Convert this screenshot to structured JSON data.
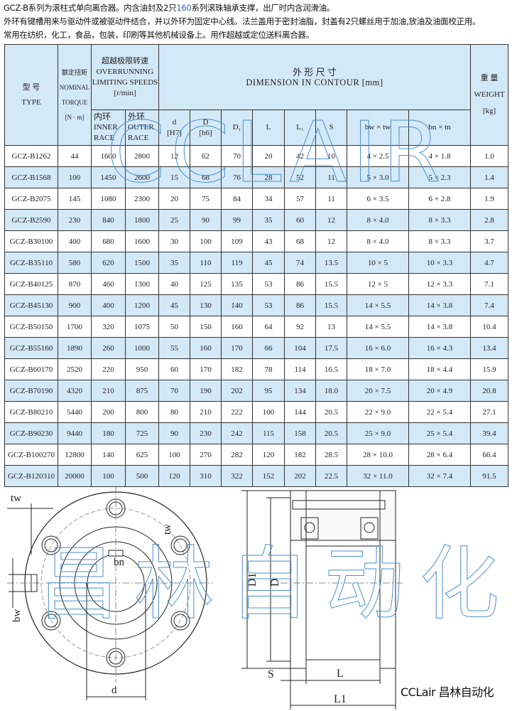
{
  "intro": {
    "line1_a": "GCZ-B系列为滚柱式单向离合器。内含油封及2只",
    "line1_b": "160",
    "line1_c": "系列滚珠轴承支撑，出厂时内含润滑油。",
    "line2": "外环有键槽用来与驱动件或被驱动件结合，并以外环为固定中心线。法兰盖用于密封油脂，封盖有2只螺丝用于加油,放油及油面校正用。",
    "line3": "常用在纺织，化工，食品，包装，印刷等其他机械设备上。用作超越或定位送料离合器。"
  },
  "table": {
    "header": {
      "type_cn": "型 号",
      "type_en": "TYPE",
      "torque_cn": "额定扭矩",
      "torque_en1": "NOMINAL",
      "torque_en2": "TORQUE",
      "torque_unit": "[N · m]",
      "speed_cn": "超越极限转速",
      "speed_en1": "OVERRUNNING",
      "speed_en2": "LIMITING SPEEDS",
      "speed_unit": "[r/min]",
      "inner_cn": "内环",
      "inner_en1": "INNER",
      "inner_en2": "RACE",
      "outer_cn": "外环",
      "outer_en1": "OUTER",
      "outer_en2": "RACE",
      "dim_cn": "外 形 尺 寸",
      "dim_en": "DIMENSION  IN  CONTOUR  [mm]",
      "weight_cn": "重 量",
      "weight_en": "WEIGHT",
      "weight_unit": "[kg]",
      "d": "d",
      "d_tol": "[H7]",
      "D": "D",
      "D_tol": "[h6]",
      "D1": "D₁",
      "L": "L",
      "L1": "L₁",
      "S": "S",
      "bwtw": "bw × tw",
      "bntn": "bn × tn"
    },
    "rows": [
      [
        "GCZ-B1262",
        "44",
        "1600",
        "2800",
        "12",
        "62",
        "70",
        "20",
        "42",
        "10",
        "4 × 2.5",
        "4 × 1.8",
        "1.0"
      ],
      [
        "GCZ-B1568",
        "100",
        "1450",
        "2600",
        "15",
        "68",
        "76",
        "28",
        "52",
        "11",
        "5 × 3.0",
        "5 × 2.3",
        "1.4"
      ],
      [
        "GCZ-B2075",
        "145",
        "1080",
        "2300",
        "20",
        "75",
        "84",
        "34",
        "57",
        "11",
        "6 × 3.5",
        "6 × 2.8",
        "1.9"
      ],
      [
        "GCZ-B2590",
        "230",
        "840",
        "1800",
        "25",
        "90",
        "99",
        "35",
        "60",
        "12",
        "8 × 4.0",
        "8 × 3.3",
        "2.8"
      ],
      [
        "GCZ-B30100",
        "400",
        "680",
        "1600",
        "30",
        "100",
        "109",
        "43",
        "68",
        "12",
        "8 × 4.0",
        "8 × 3.3",
        "3.7"
      ],
      [
        "GCZ-B35110",
        "580",
        "620",
        "1500",
        "35",
        "110",
        "119",
        "45",
        "74",
        "13.5",
        "10 × 5",
        "10 × 3.3",
        "4.7"
      ],
      [
        "GCZ-B40125",
        "870",
        "460",
        "1300",
        "40",
        "125",
        "135",
        "53",
        "86",
        "15.5",
        "12 × 5",
        "12 × 3.3",
        "7.1"
      ],
      [
        "GCZ-B45130",
        "900",
        "400",
        "1200",
        "45",
        "130",
        "140",
        "53",
        "86",
        "15.5",
        "14 × 5.5",
        "14 × 3.8",
        "7.4"
      ],
      [
        "GCZ-B50150",
        "1700",
        "320",
        "1075",
        "50",
        "150",
        "160",
        "64",
        "92",
        "13",
        "14 × 5.5",
        "14 × 3.8",
        "10.4"
      ],
      [
        "GCZ-B55160",
        "1890",
        "260",
        "1000",
        "55",
        "160",
        "170",
        "66",
        "104",
        "17.5",
        "16 × 6.0",
        "16 × 4.3",
        "13.4"
      ],
      [
        "GCZ-B60170",
        "2520",
        "220",
        "950",
        "60",
        "170",
        "182",
        "78",
        "114",
        "16.5",
        "18 × 7.0",
        "18 × 4.4",
        "15.9"
      ],
      [
        "GCZ-B70190",
        "4320",
        "210",
        "875",
        "70",
        "190",
        "202",
        "95",
        "134",
        "18.0",
        "20 × 7.5",
        "20 × 4.9",
        "20.8"
      ],
      [
        "GCZ-B80210",
        "5440",
        "200",
        "800",
        "80",
        "210",
        "222",
        "100",
        "144",
        "20.5",
        "22 × 9.0",
        "22 × 5.4",
        "27.1"
      ],
      [
        "GCZ-B90230",
        "9440",
        "180",
        "725",
        "90",
        "230",
        "242",
        "115",
        "158",
        "20.5",
        "25 × 9.0",
        "25 × 5.4",
        "39.4"
      ],
      [
        "GCZ-B100270",
        "12800",
        "140",
        "625",
        "100",
        "270",
        "282",
        "120",
        "182",
        "28.5",
        "28 × 10.0",
        "28 × 6.4",
        "66.4"
      ],
      [
        "GCZ-B120310",
        "20000",
        "100",
        "500",
        "120",
        "310",
        "322",
        "152",
        "202",
        "22.5",
        "32 × 11.0",
        "32 × 7.4",
        "91.5"
      ]
    ]
  },
  "drawing": {
    "labels": {
      "tw": "tw",
      "bn": "bn",
      "bw": "bw",
      "d": "d",
      "D1": "D1",
      "D": "D",
      "S": "S",
      "L": "L",
      "L1": "L1"
    }
  },
  "watermarks": {
    "table": "CCLAIR",
    "drawing": "昌林自动化"
  },
  "logo": "CCLair 昌林自动化",
  "colors": {
    "header_bg": "#d4e9f8",
    "watermark": "#4a8fcc"
  }
}
